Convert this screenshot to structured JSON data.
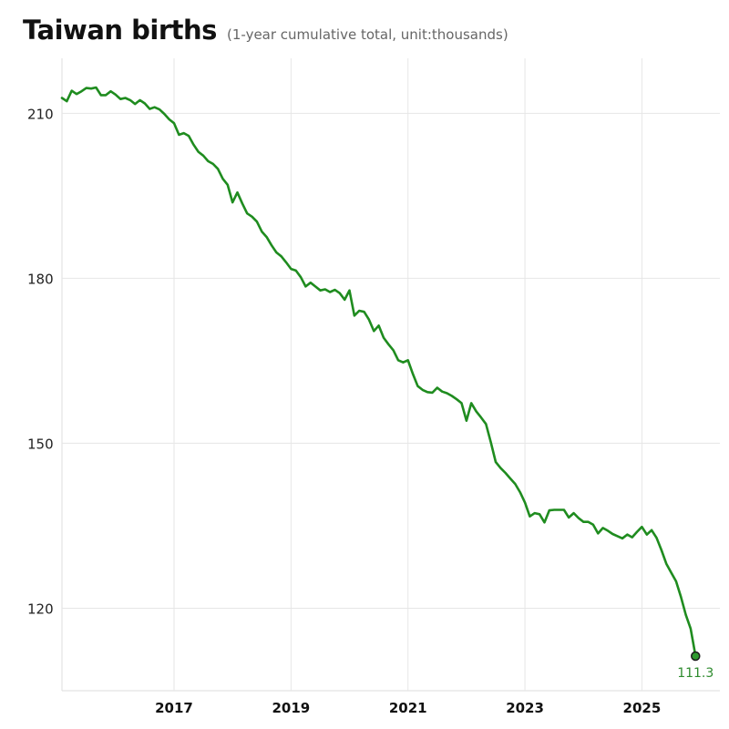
{
  "chart_data": {
    "type": "line",
    "title": "Taiwan births",
    "subtitle": "(1-year cumulative total, unit:thousands)",
    "xlabel": "",
    "ylabel": "",
    "x_start": "2015-02",
    "x_frequency": "monthly",
    "xlim": [
      "2015-02",
      "2026-05"
    ],
    "ylim": [
      105,
      220
    ],
    "x_ticks": [
      "2017",
      "2019",
      "2021",
      "2023",
      "2025"
    ],
    "y_ticks": [
      120,
      150,
      180,
      210
    ],
    "grid": true,
    "line_color": "#1f8c1f",
    "end_label": "111.3",
    "end_label_color": "#2e8b2e",
    "series": [
      {
        "values": [
          212.8,
          212.2,
          214.1,
          213.5,
          214.0,
          214.6,
          214.5,
          214.7,
          213.3,
          213.3,
          214.0,
          213.4,
          212.6,
          212.8,
          212.4,
          211.7,
          212.4,
          211.8,
          210.8,
          211.1,
          210.7,
          209.9,
          208.9,
          208.2,
          206.1,
          206.4,
          205.9,
          204.3,
          203.0,
          202.3,
          201.3,
          200.8,
          199.9,
          198.1,
          197.0,
          193.8,
          195.6,
          193.6,
          191.8,
          191.2,
          190.3,
          188.5,
          187.5,
          186.0,
          184.7,
          184.0,
          182.9,
          181.7,
          181.4,
          180.2,
          178.5,
          179.2,
          178.5,
          177.8,
          178.0,
          177.5,
          177.9,
          177.3,
          176.1,
          177.8,
          173.2,
          174.1,
          173.9,
          172.5,
          170.4,
          171.4,
          169.2,
          168.0,
          166.9,
          165.1,
          164.7,
          165.1,
          162.6,
          160.4,
          159.7,
          159.3,
          159.2,
          160.1,
          159.4,
          159.1,
          158.6,
          158.0,
          157.3,
          154.1,
          157.3,
          155.8,
          154.7,
          153.5,
          150.2,
          146.6,
          145.5,
          144.6,
          143.6,
          142.6,
          141.1,
          139.2,
          136.7,
          137.3,
          137.1,
          135.6,
          137.8,
          137.9,
          137.9,
          137.9,
          136.5,
          137.3,
          136.4,
          135.7,
          135.7,
          135.2,
          133.6,
          134.6,
          134.1,
          133.5,
          133.1,
          132.7,
          133.4,
          132.9,
          133.9,
          134.8,
          133.4,
          134.2,
          132.8,
          130.6,
          128.1,
          126.5,
          124.9,
          122.1,
          118.8,
          116.3,
          111.3
        ]
      }
    ]
  }
}
